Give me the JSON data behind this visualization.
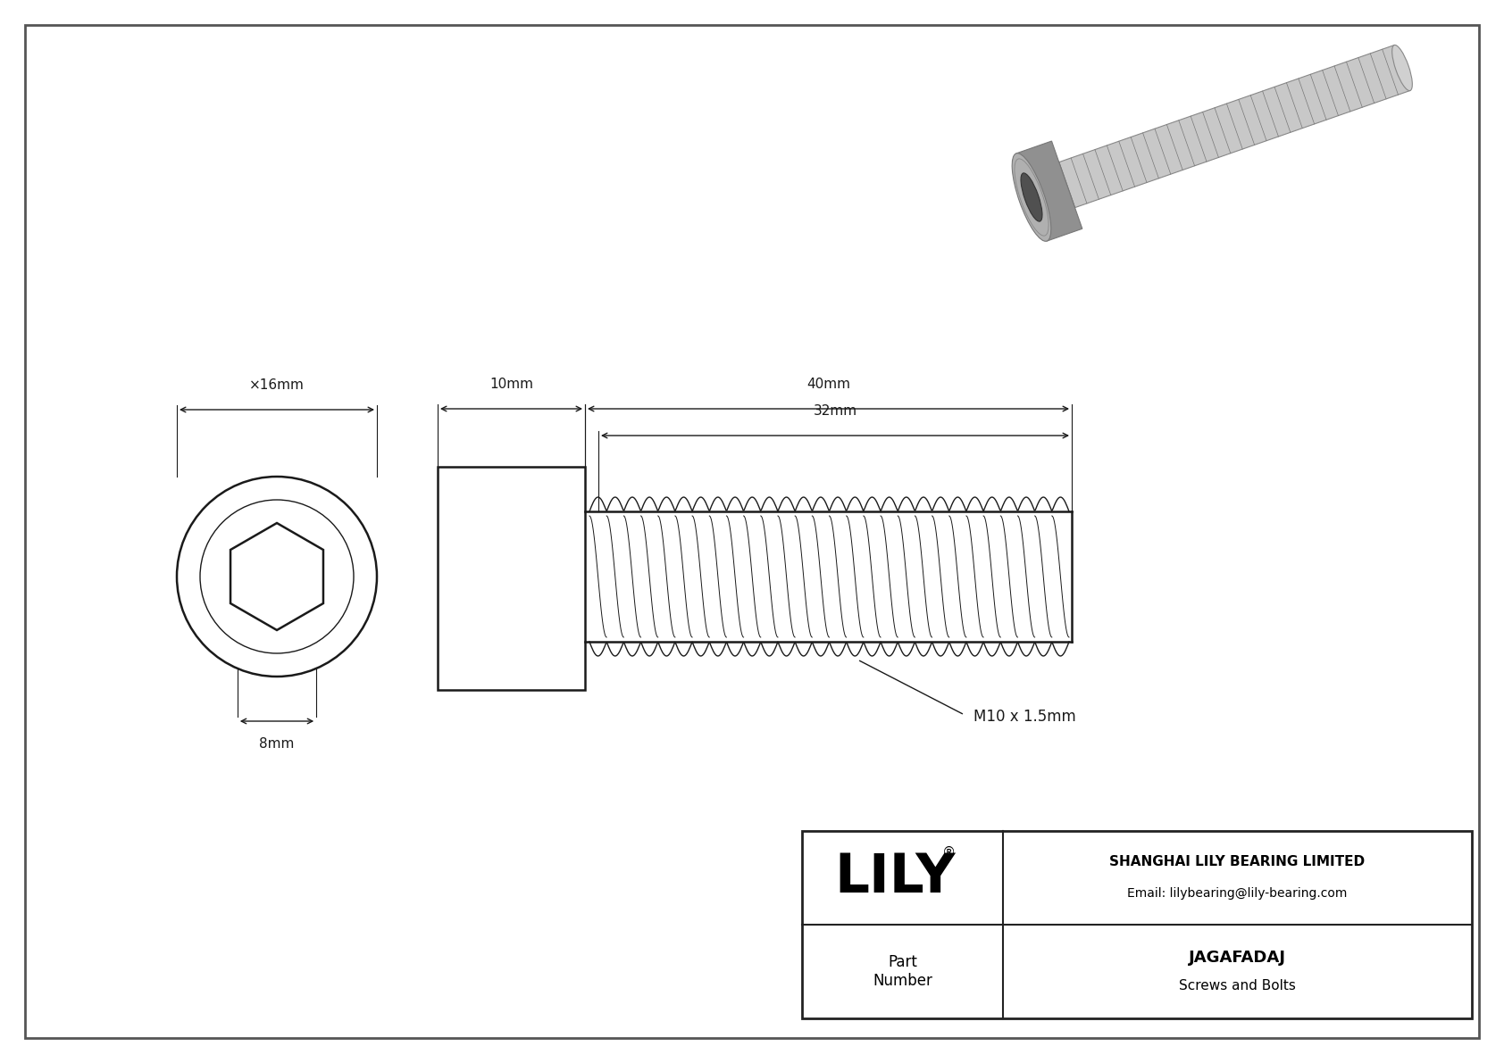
{
  "bg_color": "#ffffff",
  "line_color": "#1a1a1a",
  "dim_color": "#1a1a1a",
  "title": "JAGAFADAJ",
  "subtitle": "Screws and Bolts",
  "company": "SHANGHAI LILY BEARING LIMITED",
  "email": "Email: lilybearing@lily-bearing.com",
  "part_label": "Part\nNumber",
  "lily_text": "LILY",
  "dim_head_diameter": "×16mm",
  "dim_hex_size": "8mm",
  "dim_head_length": "10mm",
  "dim_thread_length": "40mm",
  "dim_thread_length2": "32mm",
  "dim_thread_spec": "M10 x 1.5mm",
  "font_size_dim": 11,
  "font_size_lily": 44,
  "font_size_company": 10,
  "font_size_part": 13,
  "outer_border_color": "#555555",
  "tb_border_color": "#333333"
}
